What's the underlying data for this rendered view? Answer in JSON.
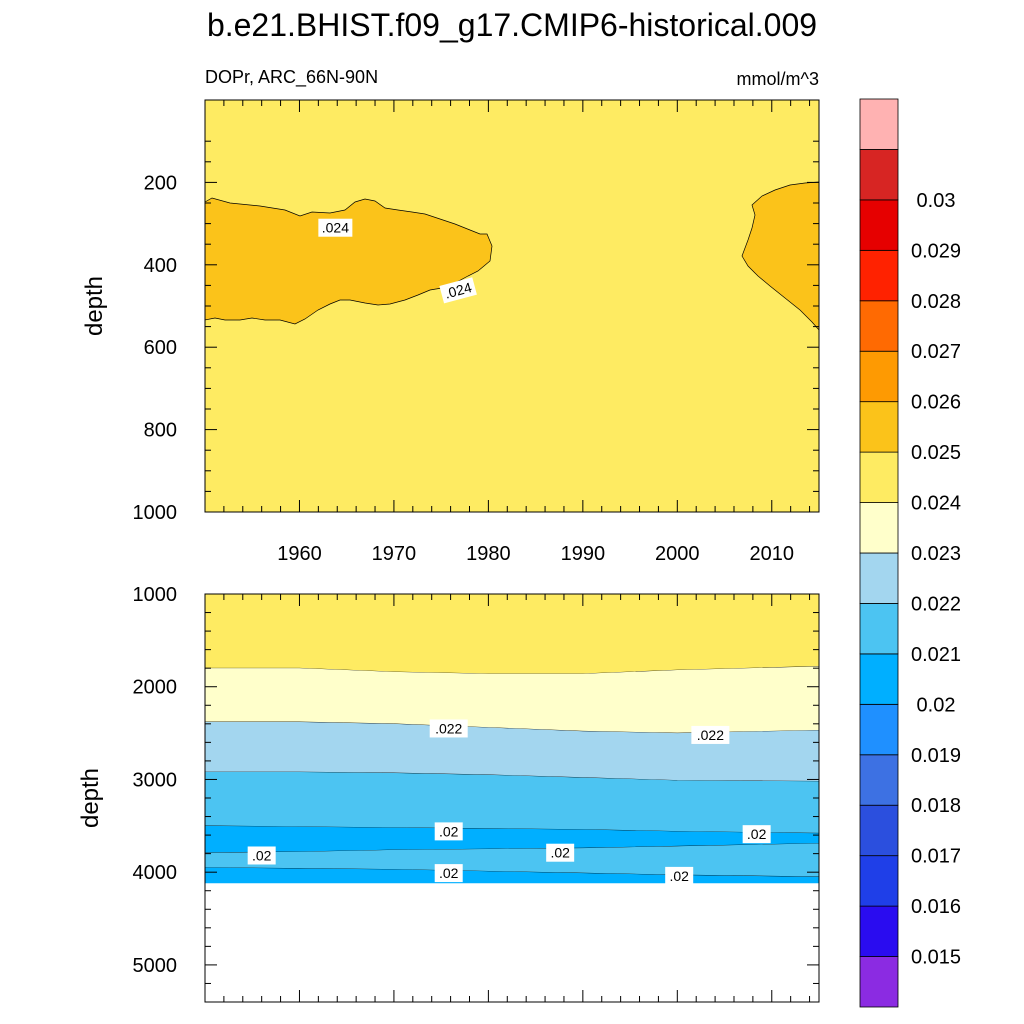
{
  "chart_data": {
    "type": "contour",
    "title": "b.e21.BHIST.f09_g17.CMIP6-historical.009",
    "variable_label": "DOPr, ARC_66N-90N",
    "units": "mmol/m^3",
    "x_range": [
      1950,
      2015
    ],
    "x_ticks": [
      1960,
      1970,
      1980,
      1990,
      2000,
      2010
    ],
    "panels": [
      {
        "name": "upper",
        "ylabel": "depth",
        "y_range": [
          0,
          1000
        ],
        "y_ticks": [
          200,
          400,
          600,
          800,
          1000
        ],
        "background_level": "0.023-0.024",
        "regions": [
          {
            "level": "0.024-0.025",
            "description": "left lobe 1950-1981, depth ~240-570"
          },
          {
            "level": "0.024-0.025",
            "description": "right lobe 2007-2015, depth ~200-570"
          }
        ],
        "contour_labels": [
          {
            "text": ".024",
            "x": 1963.8,
            "y": 310
          },
          {
            "text": ".024",
            "x": 1976.8,
            "y": 462
          }
        ]
      },
      {
        "name": "lower",
        "ylabel": "depth",
        "y_range": [
          1000,
          5400
        ],
        "y_ticks": [
          1000,
          2000,
          3000,
          4000,
          5000
        ],
        "bands": [
          {
            "level": "0.023-0.024",
            "from": "top",
            "to_boundary": [
              1800,
              1800,
              1840,
              1860,
              1860,
              1820,
              1780
            ]
          },
          {
            "level": "0.022-0.023",
            "to_boundary": [
              2380,
              2380,
              2400,
              2440,
              2480,
              2500,
              2470
            ]
          },
          {
            "level": "0.021-0.022",
            "to_boundary": [
              2920,
              2920,
              2930,
              2950,
              2980,
              3010,
              3020
            ]
          },
          {
            "level": "0.020-0.021",
            "to_boundary": [
              3500,
              3510,
              3520,
              3530,
              3540,
              3560,
              3580
            ]
          },
          {
            "level": "0.019-0.020",
            "to_boundary": [
              3790,
              3780,
              3760,
              3750,
              3740,
              3720,
              3690
            ]
          },
          {
            "level": "0.020-0.021",
            "to_boundary": [
              3950,
              3960,
              3970,
              3990,
              4010,
              4030,
              4050
            ]
          },
          {
            "level": "0.019-0.020",
            "to_boundary": [
              4120,
              4120,
              4120,
              4120,
              4120,
              4120,
              4120
            ]
          }
        ],
        "boundary_x": [
          1950,
          1960,
          1970,
          1980,
          1990,
          2000,
          2015
        ],
        "contour_labels": [
          {
            "text": ".022",
            "x": 1975.8,
            "y": 2450
          },
          {
            "text": ".022",
            "x": 2003.5,
            "y": 2520
          },
          {
            "text": ".02",
            "x": 1975.8,
            "y": 3560
          },
          {
            "text": ".02",
            "x": 2008.4,
            "y": 3590
          },
          {
            "text": ".02",
            "x": 1956,
            "y": 3820
          },
          {
            "text": ".02",
            "x": 1987.6,
            "y": 3790
          },
          {
            "text": ".02",
            "x": 1975.8,
            "y": 4010
          },
          {
            "text": ".02",
            "x": 2000.2,
            "y": 4040
          }
        ]
      }
    ],
    "colorbar": {
      "labels": [
        "0.015",
        "0.016",
        "0.017",
        "0.018",
        "0.019",
        "0.02",
        "0.021",
        "0.022",
        "0.023",
        "0.024",
        "0.025",
        "0.026",
        "0.027",
        "0.028",
        "0.029",
        "0.03"
      ],
      "colors": [
        "#8B2BE2",
        "#2A0CF0",
        "#1F3FE8",
        "#2B4FDE",
        "#3D71E3",
        "#1F90FF",
        "#00AFFF",
        "#4CC4F2",
        "#A3D6EF",
        "#FFFFCB",
        "#FEEB62",
        "#FBC31A",
        "#FE9A02",
        "#FF6A02",
        "#FF2200",
        "#E60000",
        "#D72523",
        "#FFB2B2"
      ]
    },
    "level_colors": {
      "0.019-0.020": "#00AFFF",
      "0.020-0.021": "#4CC4F2",
      "0.021-0.022": "#A3D6EF",
      "0.022-0.023": "#FFFFCB",
      "0.023-0.024": "#FEEB62",
      "0.024-0.025": "#FBC31A"
    }
  }
}
